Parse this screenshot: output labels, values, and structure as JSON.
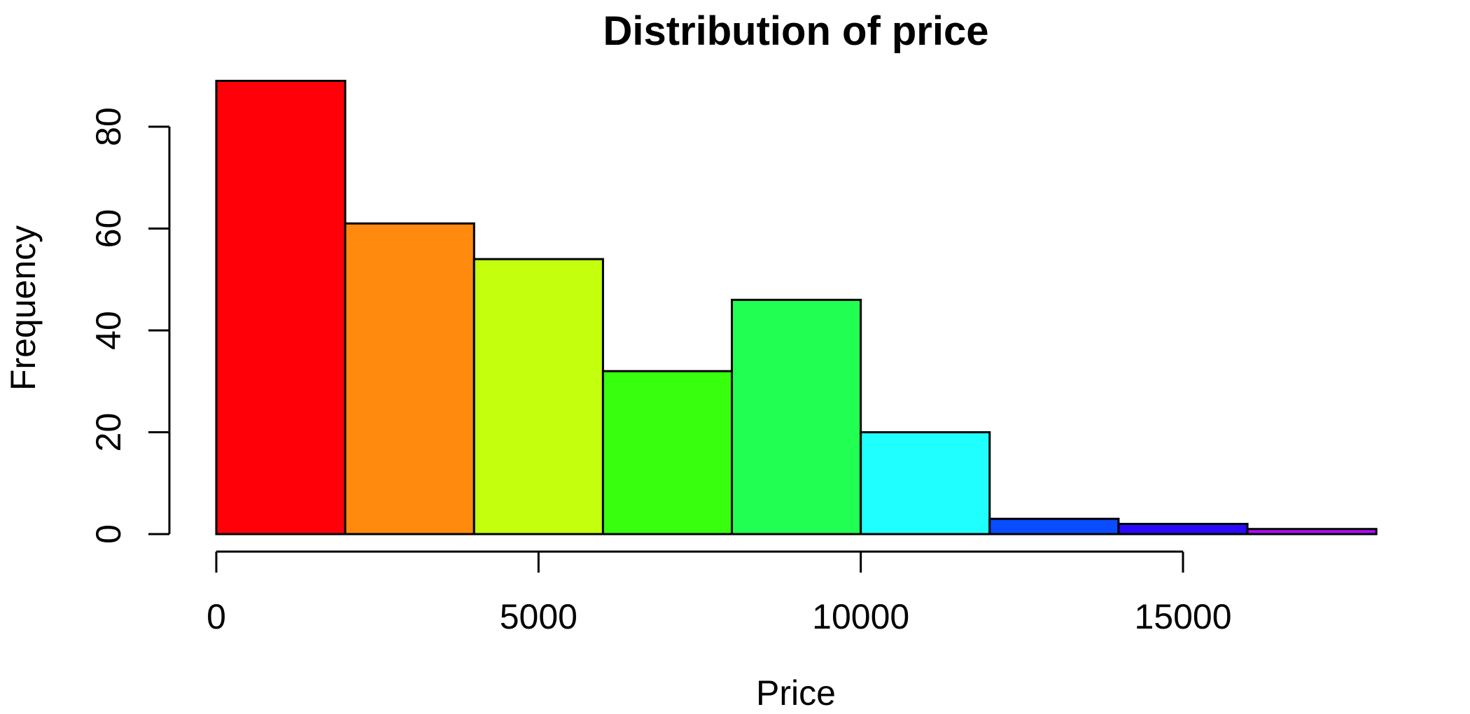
{
  "chart_data": {
    "type": "bar",
    "subtype": "histogram",
    "title": "Distribution of price",
    "xlabel": "Price",
    "ylabel": "Frequency",
    "bins": [
      {
        "start": 0,
        "end": 2000,
        "count": 89,
        "color": "#FF0009"
      },
      {
        "start": 2000,
        "end": 4000,
        "count": 61,
        "color": "#FF8A0E"
      },
      {
        "start": 4000,
        "end": 6000,
        "count": 54,
        "color": "#C4FF0E"
      },
      {
        "start": 6000,
        "end": 8000,
        "count": 32,
        "color": "#37FF0E"
      },
      {
        "start": 8000,
        "end": 10000,
        "count": 46,
        "color": "#20FF52"
      },
      {
        "start": 10000,
        "end": 12000,
        "count": 20,
        "color": "#20FFFF"
      },
      {
        "start": 12000,
        "end": 14000,
        "count": 3,
        "color": "#0A4CFF"
      },
      {
        "start": 14000,
        "end": 16000,
        "count": 2,
        "color": "#2B0AFF"
      },
      {
        "start": 16000,
        "end": 18000,
        "count": 1,
        "color": "#B10AFF"
      }
    ],
    "x_ticks": [
      0,
      5000,
      10000,
      15000
    ],
    "y_ticks": [
      0,
      20,
      40,
      60,
      80
    ],
    "xlim": [
      0,
      18000
    ],
    "ylim": [
      0,
      89
    ],
    "grid": false,
    "legend": "none"
  }
}
